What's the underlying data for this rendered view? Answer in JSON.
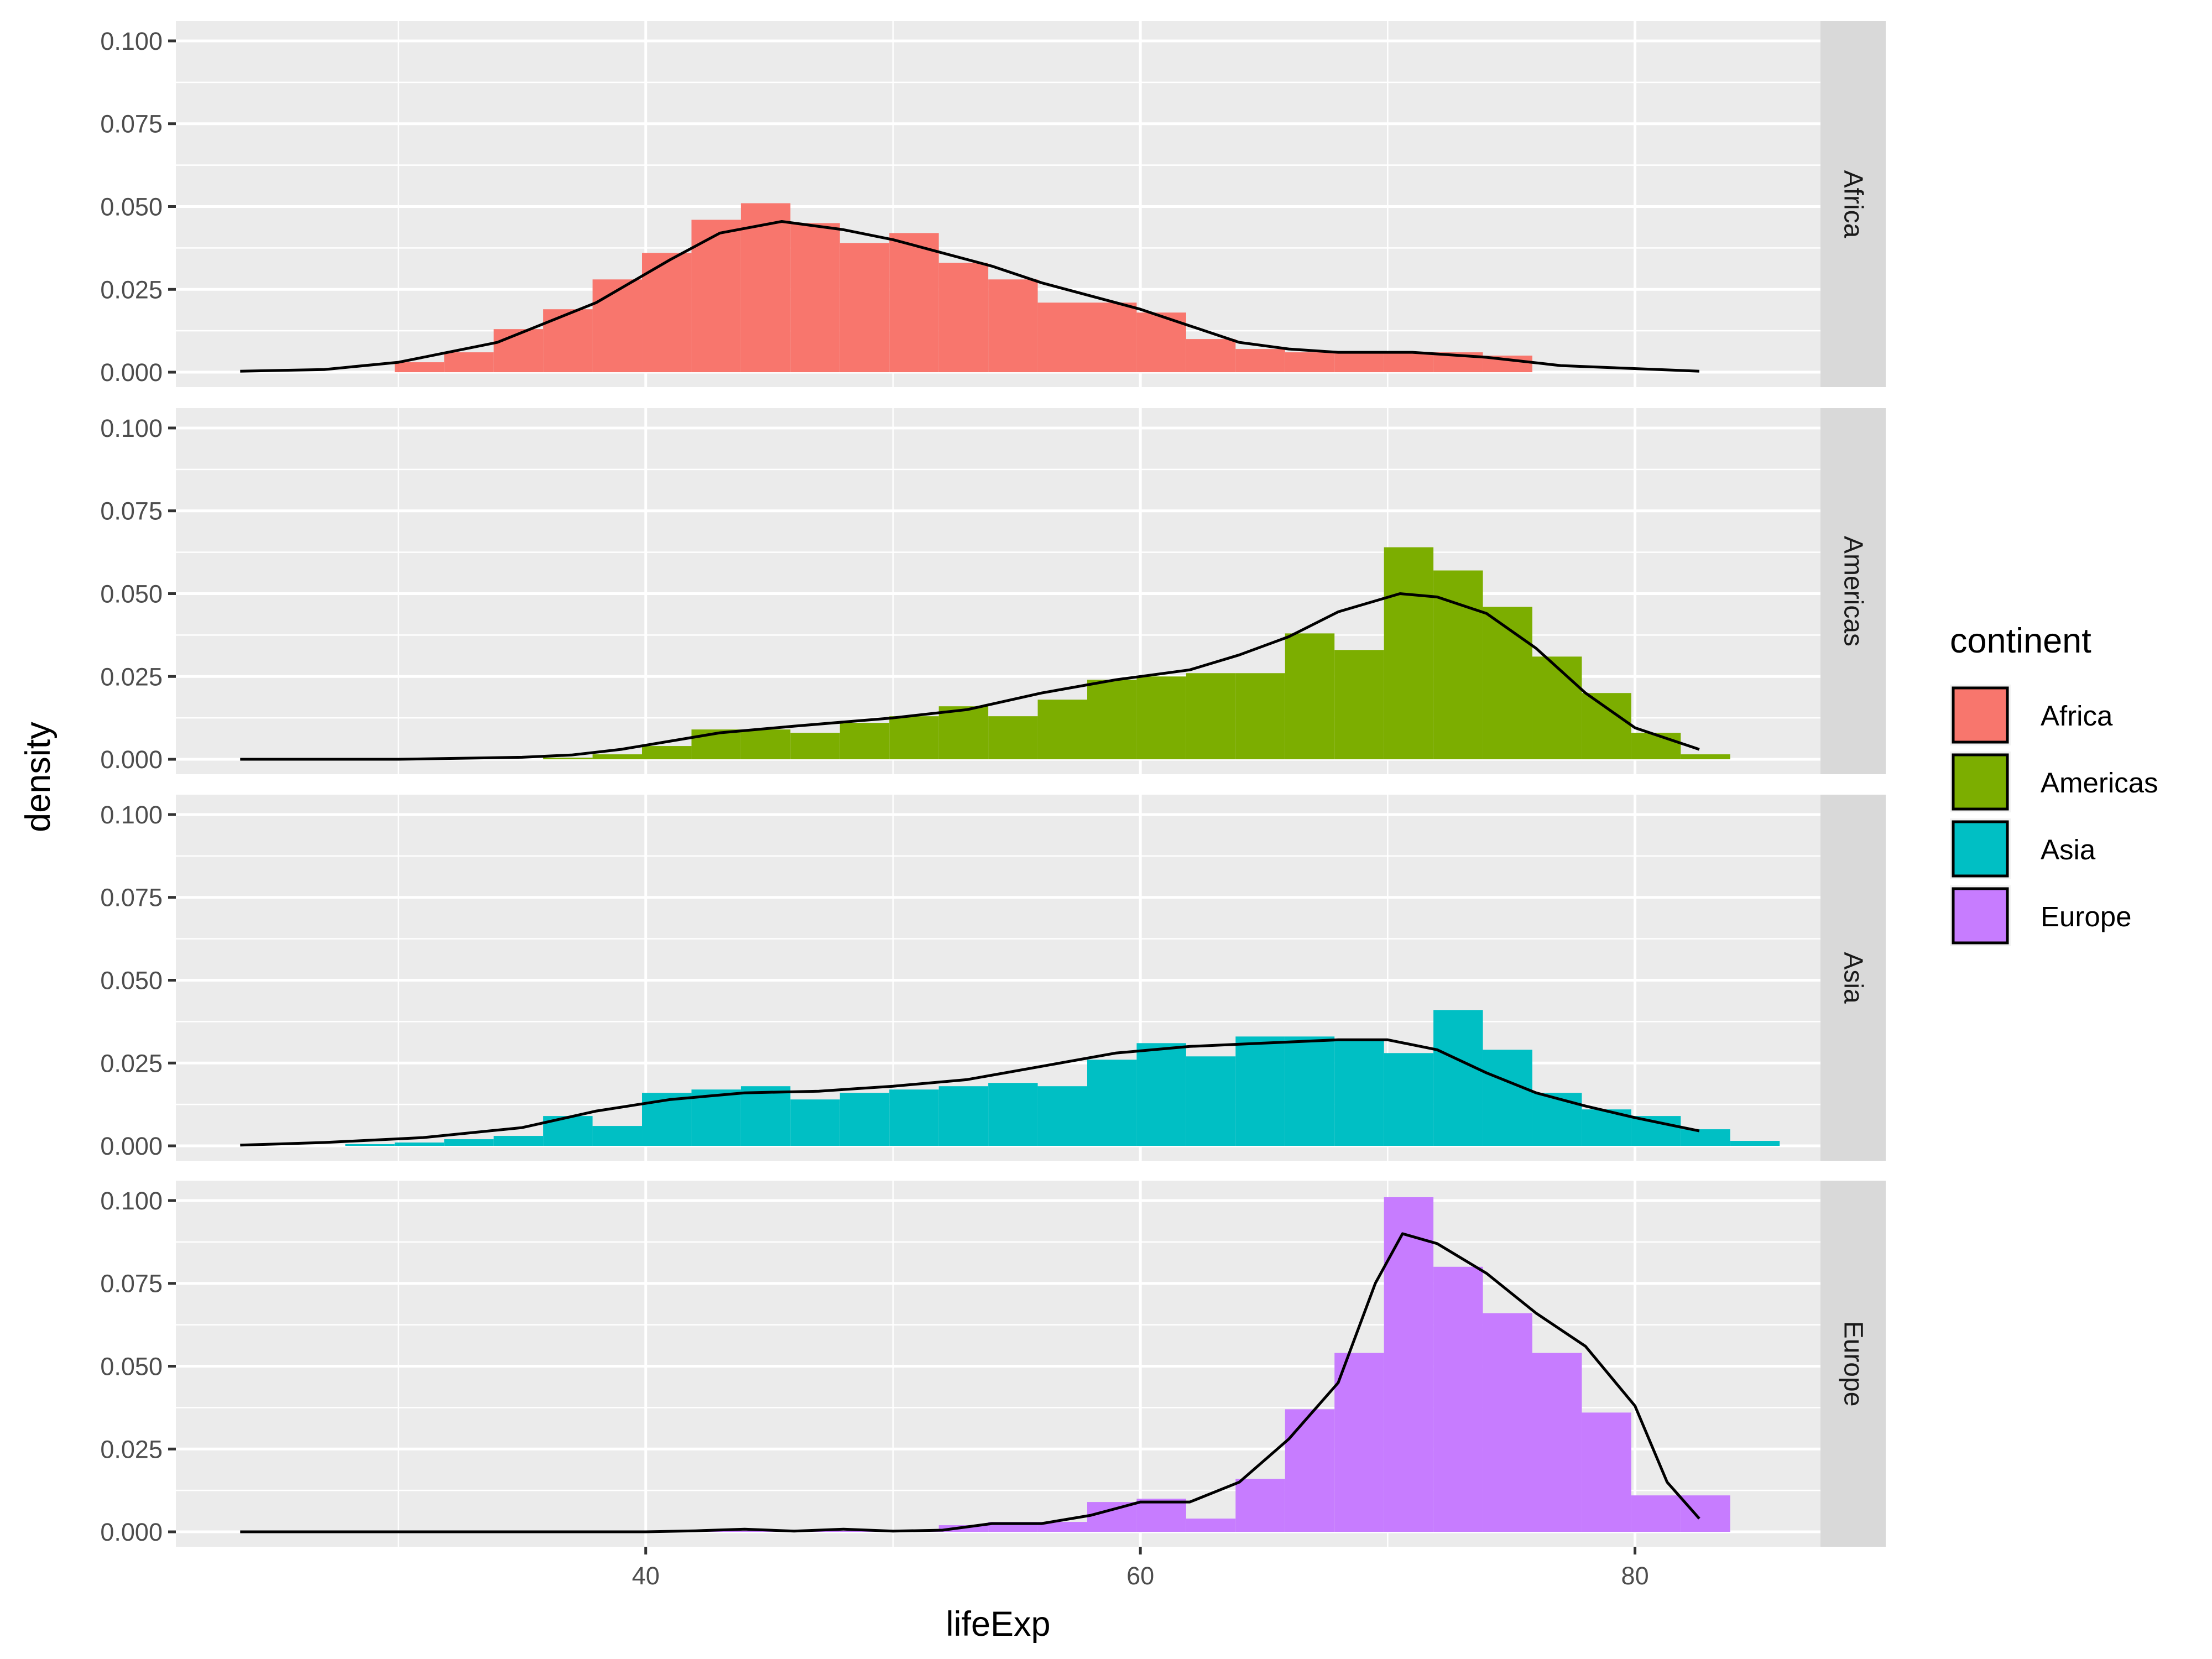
{
  "chart_data": {
    "type": "histogram",
    "xlabel": "lifeExp",
    "ylabel": "density",
    "xlim": [
      21.0,
      87.5
    ],
    "ylim": [
      -0.0045,
      0.106
    ],
    "x_ticks": [
      40,
      60,
      80
    ],
    "x_tick_labels": [
      "40",
      "60",
      "80"
    ],
    "y_ticks": [
      0,
      0.025,
      0.05,
      0.075,
      0.1
    ],
    "y_tick_labels": [
      "0.000",
      "0.025",
      "0.050",
      "0.075",
      "0.100"
    ],
    "bin_width": 2,
    "grid": true,
    "legend": {
      "title": "continent",
      "position": "right",
      "entries": [
        "Africa",
        "Americas",
        "Asia",
        "Europe"
      ]
    },
    "panels": [
      {
        "name": "Africa",
        "color": "#F8766D",
        "bin_starts": [
          29.85,
          31.85,
          33.85,
          35.85,
          37.85,
          39.85,
          41.85,
          43.85,
          45.85,
          47.85,
          49.85,
          51.85,
          53.85,
          55.85,
          57.85,
          59.85,
          61.85,
          63.85,
          65.85,
          67.85,
          69.85,
          71.85,
          73.85
        ],
        "bin_values": [
          0.003,
          0.006,
          0.013,
          0.019,
          0.028,
          0.036,
          0.046,
          0.051,
          0.045,
          0.039,
          0.042,
          0.033,
          0.028,
          0.021,
          0.021,
          0.018,
          0.01,
          0.007,
          0.006,
          0.006,
          0.006,
          0.006,
          0.005
        ],
        "density": [
          [
            23.6,
            0.0003
          ],
          [
            27,
            0.0008
          ],
          [
            30,
            0.003
          ],
          [
            34,
            0.009
          ],
          [
            38,
            0.021
          ],
          [
            41,
            0.034
          ],
          [
            43,
            0.042
          ],
          [
            45.5,
            0.0455
          ],
          [
            48,
            0.043
          ],
          [
            50,
            0.04
          ],
          [
            52,
            0.036
          ],
          [
            54,
            0.032
          ],
          [
            56,
            0.027
          ],
          [
            60,
            0.019
          ],
          [
            62,
            0.014
          ],
          [
            64,
            0.009
          ],
          [
            66,
            0.007
          ],
          [
            68,
            0.006
          ],
          [
            71,
            0.006
          ],
          [
            74,
            0.0045
          ],
          [
            77,
            0.002
          ],
          [
            82.6,
            0.0003
          ]
        ]
      },
      {
        "name": "Americas",
        "color": "#7CAE00",
        "bin_starts": [
          35.85,
          37.85,
          39.85,
          41.85,
          43.85,
          45.85,
          47.85,
          49.85,
          51.85,
          53.85,
          55.85,
          57.85,
          59.85,
          61.85,
          63.85,
          65.85,
          67.85,
          69.85,
          71.85,
          73.85,
          75.85,
          77.85,
          79.85,
          81.85
        ],
        "bin_values": [
          0.0005,
          0.0015,
          0.004,
          0.009,
          0.009,
          0.008,
          0.011,
          0.013,
          0.016,
          0.013,
          0.018,
          0.024,
          0.025,
          0.026,
          0.026,
          0.038,
          0.033,
          0.064,
          0.057,
          0.046,
          0.031,
          0.02,
          0.008,
          0.0015
        ],
        "density": [
          [
            23.6,
            0.0
          ],
          [
            30,
            0.0
          ],
          [
            35,
            0.0006
          ],
          [
            37,
            0.0013
          ],
          [
            39,
            0.003
          ],
          [
            41,
            0.0055
          ],
          [
            43,
            0.008
          ],
          [
            46,
            0.01
          ],
          [
            50,
            0.0125
          ],
          [
            53,
            0.015
          ],
          [
            56,
            0.02
          ],
          [
            59,
            0.024
          ],
          [
            62,
            0.027
          ],
          [
            64,
            0.0315
          ],
          [
            66,
            0.037
          ],
          [
            68,
            0.0445
          ],
          [
            70.5,
            0.05
          ],
          [
            72,
            0.049
          ],
          [
            74,
            0.044
          ],
          [
            76,
            0.0335
          ],
          [
            78,
            0.02
          ],
          [
            80,
            0.0095
          ],
          [
            82.6,
            0.003
          ]
        ]
      },
      {
        "name": "Asia",
        "color": "#00BFC4",
        "bin_starts": [
          27.85,
          29.85,
          31.85,
          33.85,
          35.85,
          37.85,
          39.85,
          41.85,
          43.85,
          45.85,
          47.85,
          49.85,
          51.85,
          53.85,
          55.85,
          57.85,
          59.85,
          61.85,
          63.85,
          65.85,
          67.85,
          69.85,
          71.85,
          73.85,
          75.85,
          77.85,
          79.85,
          81.85,
          83.85
        ],
        "bin_values": [
          0.0005,
          0.001,
          0.002,
          0.003,
          0.009,
          0.006,
          0.016,
          0.017,
          0.018,
          0.014,
          0.016,
          0.017,
          0.018,
          0.019,
          0.018,
          0.026,
          0.031,
          0.027,
          0.033,
          0.033,
          0.032,
          0.028,
          0.041,
          0.029,
          0.016,
          0.011,
          0.009,
          0.005,
          0.0015
        ],
        "density": [
          [
            23.6,
            0.0002
          ],
          [
            27,
            0.001
          ],
          [
            31,
            0.0025
          ],
          [
            35,
            0.0055
          ],
          [
            38,
            0.0105
          ],
          [
            41,
            0.014
          ],
          [
            44,
            0.016
          ],
          [
            47,
            0.0165
          ],
          [
            50,
            0.018
          ],
          [
            53,
            0.02
          ],
          [
            56,
            0.024
          ],
          [
            59,
            0.028
          ],
          [
            62,
            0.03
          ],
          [
            65,
            0.031
          ],
          [
            68,
            0.032
          ],
          [
            70,
            0.032
          ],
          [
            72,
            0.029
          ],
          [
            74,
            0.022
          ],
          [
            76,
            0.016
          ],
          [
            78,
            0.012
          ],
          [
            80,
            0.0085
          ],
          [
            82.6,
            0.0045
          ]
        ]
      },
      {
        "name": "Europe",
        "color": "#C77CFF",
        "bin_starts": [
          41.85,
          43.85,
          45.85,
          47.85,
          49.85,
          51.85,
          53.85,
          55.85,
          57.85,
          59.85,
          61.85,
          63.85,
          65.85,
          67.85,
          69.85,
          71.85,
          73.85,
          75.85,
          77.85,
          79.85,
          81.85
        ],
        "bin_values": [
          0.0003,
          0.0003,
          0.0005,
          0.0003,
          0.0005,
          0.002,
          0.003,
          0.003,
          0.009,
          0.01,
          0.004,
          0.016,
          0.037,
          0.054,
          0.101,
          0.08,
          0.066,
          0.054,
          0.036,
          0.011,
          0.011
        ],
        "density": [
          [
            23.6,
            0.0
          ],
          [
            40,
            0.0
          ],
          [
            42,
            0.0003
          ],
          [
            44,
            0.0008
          ],
          [
            46,
            0.0002
          ],
          [
            48,
            0.0008
          ],
          [
            50,
            0.0002
          ],
          [
            52,
            0.0005
          ],
          [
            54,
            0.0025
          ],
          [
            56,
            0.0025
          ],
          [
            58,
            0.005
          ],
          [
            60,
            0.009
          ],
          [
            62,
            0.009
          ],
          [
            64,
            0.015
          ],
          [
            66,
            0.028
          ],
          [
            68,
            0.045
          ],
          [
            69.5,
            0.075
          ],
          [
            70.6,
            0.09
          ],
          [
            72,
            0.087
          ],
          [
            74,
            0.078
          ],
          [
            76,
            0.066
          ],
          [
            78,
            0.056
          ],
          [
            80,
            0.038
          ],
          [
            81.3,
            0.015
          ],
          [
            82.6,
            0.004
          ]
        ]
      }
    ]
  }
}
